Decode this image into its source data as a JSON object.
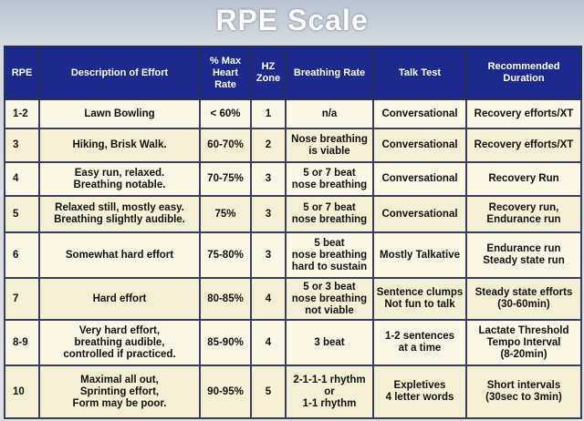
{
  "title": "RPE Scale",
  "headers": [
    "RPE",
    "Description of Effort",
    "% Max Heart Rate",
    "HZ Zone",
    "Breathing Rate",
    "Talk Test",
    "Recommended Duration"
  ],
  "rows": [
    {
      "rpe": "1-2",
      "description": "Lawn Bowling",
      "max_hr": "< 60%",
      "zone": "1",
      "breathing": "n/a",
      "talk": "Conversational",
      "duration": "Recovery efforts/XT"
    },
    {
      "rpe": "3",
      "description": "Hiking, Brisk Walk.",
      "max_hr": "60-70%",
      "zone": "2",
      "breathing": "Nose breathing\nis viable",
      "talk": "Conversational",
      "duration": "Recovery efforts/XT"
    },
    {
      "rpe": "4",
      "description": "Easy run, relaxed.\nBreathing notable.",
      "max_hr": "70-75%",
      "zone": "3",
      "breathing": "5 or 7 beat\nnose breathing",
      "talk": "Conversational",
      "duration": "Recovery Run"
    },
    {
      "rpe": "5",
      "description": "Relaxed still, mostly easy.\nBreathing slightly audible.",
      "max_hr": "75%",
      "zone": "3",
      "breathing": "5 or 7 beat\nnose breathing",
      "talk": "Conversational",
      "duration": "Recovery run,\nEndurance run"
    },
    {
      "rpe": "6",
      "description": "Somewhat hard effort",
      "max_hr": "75-80%",
      "zone": "3",
      "breathing": "5 beat\nnose breathing\nhard to sustain",
      "talk": "Mostly Talkative",
      "duration": "Endurance run\nSteady state run"
    },
    {
      "rpe": "7",
      "description": "Hard effort",
      "max_hr": "80-85%",
      "zone": "4",
      "breathing": "5 or 3 beat\nnose breathing\nnot viable",
      "talk": "Sentence clumps\nNot fun to talk",
      "duration": "Steady state efforts\n(30-60min)"
    },
    {
      "rpe": "8-9",
      "description": "Very hard effort,\nbreathing audible,\ncontrolled if practiced.",
      "max_hr": "85-90%",
      "zone": "4",
      "breathing": "3 beat",
      "talk": "1-2 sentences\nat a time",
      "duration": "Lactate Threshold\nTempo Interval\n(8-20min)"
    },
    {
      "rpe": "10",
      "description": "Maximal all out,\nSprinting effort,\nForm may be poor.",
      "max_hr": "90-95%",
      "zone": "5",
      "breathing": "2-1-1-1 rhythm\nor\n1-1 rhythm",
      "talk": "Expletives\n4 letter words",
      "duration": "Short intervals\n(30sec to 3min)"
    }
  ]
}
